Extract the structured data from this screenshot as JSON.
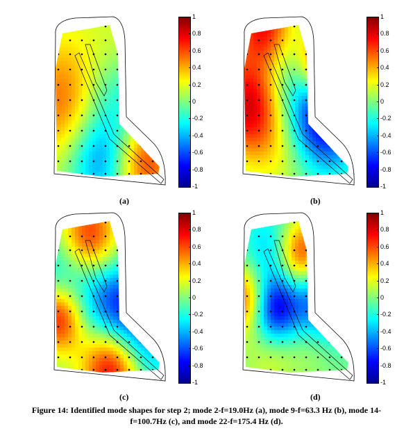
{
  "figure": {
    "caption": "Figure 14: Identified mode shapes for step 2; mode 2-f=19.0Hz (a), mode 9-f=63.3 Hz (b), mode 14-f=100.7Hz (c), and mode 22-f=175.4 Hz (d).",
    "colorbar_ticks": [
      "1",
      "0.8",
      "0.6",
      "0.4",
      "0.2",
      "0",
      "-0.2",
      "-0.4",
      "-0.6",
      "-0.8",
      "-1"
    ],
    "colormap": [
      "#00008f",
      "#0000ff",
      "#007fff",
      "#00ffff",
      "#7fff7f",
      "#ffff00",
      "#ff7f00",
      "#ff0000",
      "#7f0000"
    ],
    "colorbar_range": [
      -1,
      1
    ],
    "panels": [
      {
        "label": "(a)",
        "mode": 2,
        "frequency_hz": 19.0,
        "blobs": [
          [
            0.15,
            0.55,
            0.55,
            0.28
          ],
          [
            0.82,
            0.88,
            0.7,
            0.2
          ],
          [
            0.45,
            0.88,
            -0.55,
            0.2
          ],
          [
            0.6,
            0.5,
            -0.4,
            0.25
          ],
          [
            0.35,
            0.15,
            0.1,
            0.3
          ],
          [
            0.7,
            0.2,
            0.2,
            0.2
          ]
        ]
      },
      {
        "label": "(b)",
        "mode": 9,
        "frequency_hz": 63.3,
        "blobs": [
          [
            0.12,
            0.55,
            0.9,
            0.22
          ],
          [
            0.25,
            0.08,
            0.8,
            0.18
          ],
          [
            0.72,
            0.3,
            0.9,
            0.15
          ],
          [
            0.75,
            0.65,
            -0.8,
            0.22
          ],
          [
            0.45,
            0.35,
            -0.35,
            0.25
          ],
          [
            0.4,
            0.85,
            0.2,
            0.2
          ]
        ]
      },
      {
        "label": "(c)",
        "mode": 14,
        "frequency_hz": 100.7,
        "blobs": [
          [
            0.35,
            0.18,
            0.75,
            0.18
          ],
          [
            0.1,
            0.65,
            0.8,
            0.15
          ],
          [
            0.55,
            0.95,
            0.9,
            0.18
          ],
          [
            0.55,
            0.55,
            -0.5,
            0.2
          ],
          [
            0.8,
            0.75,
            -0.55,
            0.22
          ],
          [
            0.15,
            0.4,
            -0.4,
            0.2
          ]
        ]
      },
      {
        "label": "(d)",
        "mode": 22,
        "frequency_hz": 175.4,
        "blobs": [
          [
            0.55,
            0.28,
            0.85,
            0.15
          ],
          [
            0.1,
            0.55,
            0.75,
            0.15
          ],
          [
            0.3,
            0.6,
            -0.85,
            0.15
          ],
          [
            0.72,
            0.55,
            -0.7,
            0.2
          ],
          [
            0.3,
            0.25,
            -0.4,
            0.18
          ],
          [
            0.65,
            0.8,
            0.2,
            0.15
          ],
          [
            0.3,
            0.88,
            0.2,
            0.15
          ]
        ]
      }
    ]
  }
}
